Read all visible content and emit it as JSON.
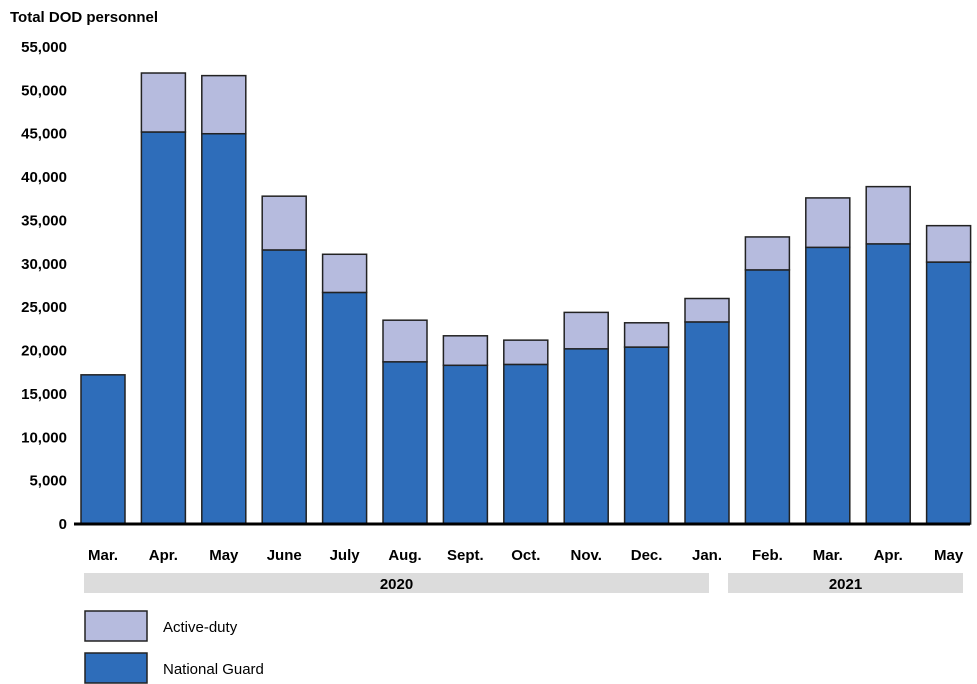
{
  "chart_data": {
    "type": "bar",
    "stacked": true,
    "ylabel": "Total DOD personnel",
    "xlabel": "",
    "ylim": [
      0,
      55000
    ],
    "yticks": [
      0,
      5000,
      10000,
      15000,
      20000,
      25000,
      30000,
      35000,
      40000,
      45000,
      50000,
      55000
    ],
    "ytick_labels": [
      "0",
      "5,000",
      "10,000",
      "15,000",
      "20,000",
      "25,000",
      "30,000",
      "35,000",
      "40,000",
      "45,000",
      "50,000",
      "55,000"
    ],
    "grid": false,
    "legend_position": "bottom-left",
    "categories": [
      "Mar.",
      "Apr.",
      "May",
      "June",
      "July",
      "Aug.",
      "Sept.",
      "Oct.",
      "Nov.",
      "Dec.",
      "Jan.",
      "Feb.",
      "Mar.",
      "Apr.",
      "May"
    ],
    "year_groups": [
      {
        "label": "2020",
        "categories": [
          "Mar.",
          "Apr.",
          "May",
          "June",
          "July",
          "Aug.",
          "Sept.",
          "Oct.",
          "Nov.",
          "Dec.",
          "Jan."
        ]
      },
      {
        "label": "2021",
        "categories": [
          "Feb.",
          "Mar.",
          "Apr.",
          "May"
        ]
      }
    ],
    "series": [
      {
        "name": "National Guard",
        "color": "#2e6dba",
        "values": [
          17200,
          45200,
          45000,
          31600,
          26700,
          18700,
          18300,
          18400,
          20200,
          20400,
          23300,
          29300,
          31900,
          32300,
          30200
        ]
      },
      {
        "name": "Active-duty",
        "color": "#b6bbde",
        "values": [
          0,
          6800,
          6700,
          6200,
          4400,
          4800,
          3400,
          2800,
          4200,
          2800,
          2700,
          3800,
          5700,
          6600,
          4200
        ]
      }
    ],
    "legend_order": [
      "Active-duty",
      "National Guard"
    ]
  }
}
